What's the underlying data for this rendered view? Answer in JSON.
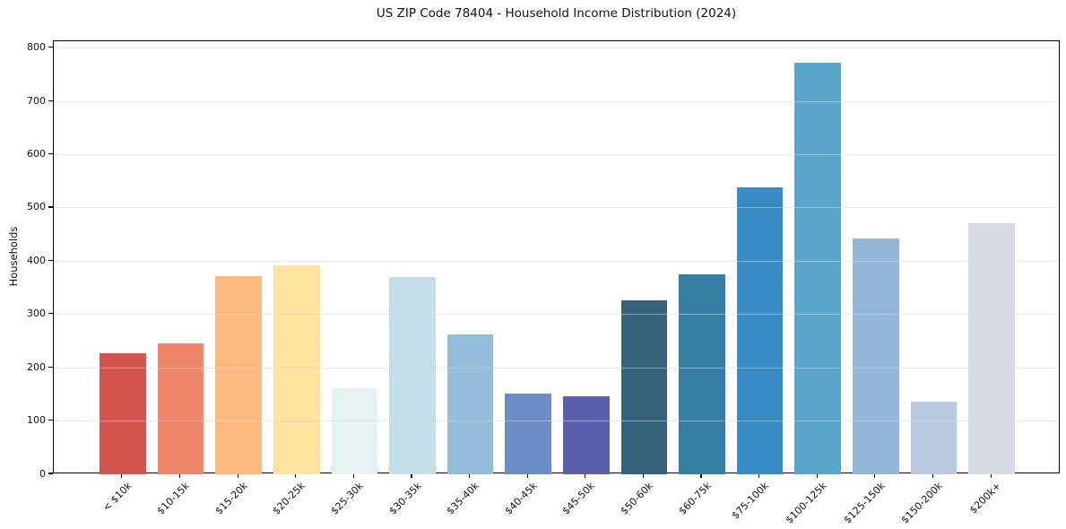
{
  "figure": {
    "title": "US ZIP Code 78404 - Household Income Distribution (2024)"
  },
  "chart_data": {
    "type": "bar",
    "title": "US ZIP Code 78404 - Household Income Distribution (2024)",
    "xlabel": "",
    "ylabel": "Households",
    "categories": [
      "< $10k",
      "$10-15k",
      "$15-20k",
      "$20-25k",
      "$25-30k",
      "$30-35k",
      "$35-40k",
      "$40-45k",
      "$45-50k",
      "$50-60k",
      "$60-75k",
      "$75-100k",
      "$100-125k",
      "$125-150k",
      "$150-200k",
      "$200k+"
    ],
    "values": [
      227,
      246,
      372,
      392,
      161,
      370,
      263,
      151,
      146,
      327,
      376,
      538,
      773,
      443,
      137,
      471
    ],
    "bar_colors": [
      "#d6544e",
      "#f0856a",
      "#fab97d",
      "#fde49e",
      "#e7f2f2",
      "#c4dfea",
      "#93bcda",
      "#6b8dc6",
      "#5a60ae",
      "#36617a",
      "#347ea3",
      "#378cc4",
      "#5ba7cc",
      "#92b7d9",
      "#b9c9df",
      "#d7d9e5"
    ],
    "yticks": [
      0,
      100,
      200,
      300,
      400,
      500,
      600,
      700,
      800
    ],
    "ylim": [
      0,
      813
    ],
    "grid": "horizontal",
    "legend": "none",
    "background_color": "#ffffff",
    "gridline_color": "#e8e8e8",
    "axis_color": "#000000",
    "text_color": "#111111",
    "x_tick_rotation_deg": 45
  }
}
